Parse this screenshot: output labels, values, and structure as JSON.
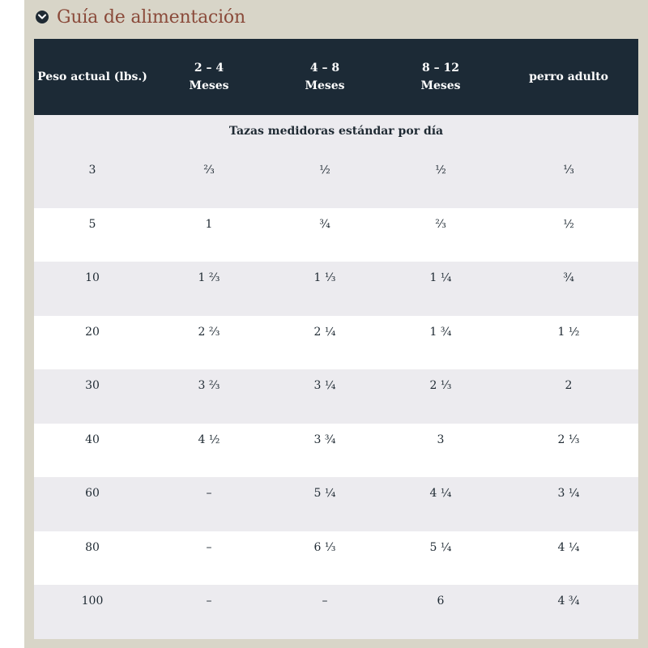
{
  "section": {
    "title": "Guía de alimentación",
    "toggle_icon": "chevron-down-circle-icon"
  },
  "table": {
    "caption": "Tazas medidoras estándar por día",
    "headers": [
      {
        "line1": "Peso actual (lbs.)",
        "line2": ""
      },
      {
        "line1": "2 – 4",
        "line2": "Meses"
      },
      {
        "line1": "4 – 8",
        "line2": "Meses"
      },
      {
        "line1": "8 – 12",
        "line2": "Meses"
      },
      {
        "line1": "perro adulto",
        "line2": ""
      }
    ],
    "rows": [
      [
        "3",
        "⅔",
        "½",
        "½",
        "⅓"
      ],
      [
        "5",
        "1",
        "¾",
        "⅔",
        "½"
      ],
      [
        "10",
        "1 ⅔",
        "1 ⅓",
        "1 ¼",
        "¾"
      ],
      [
        "20",
        "2 ⅔",
        "2 ¼",
        "1 ¾",
        "1 ½"
      ],
      [
        "30",
        "3 ⅔",
        "3 ¼",
        "2 ⅓",
        "2"
      ],
      [
        "40",
        "4 ½",
        "3 ¾",
        "3",
        "2 ⅓"
      ],
      [
        "60",
        "–",
        "5 ¼",
        "4 ¼",
        "3 ¼"
      ],
      [
        "80",
        "–",
        "6 ⅓",
        "5 ¼",
        "4 ¼"
      ],
      [
        "100",
        "–",
        "–",
        "6",
        "4 ¾"
      ]
    ]
  },
  "colors": {
    "title": "#8a4a3a",
    "header_bg": "#1c2a36",
    "panel_bg": "#d8d5c8",
    "stripe": "#ecebef"
  }
}
